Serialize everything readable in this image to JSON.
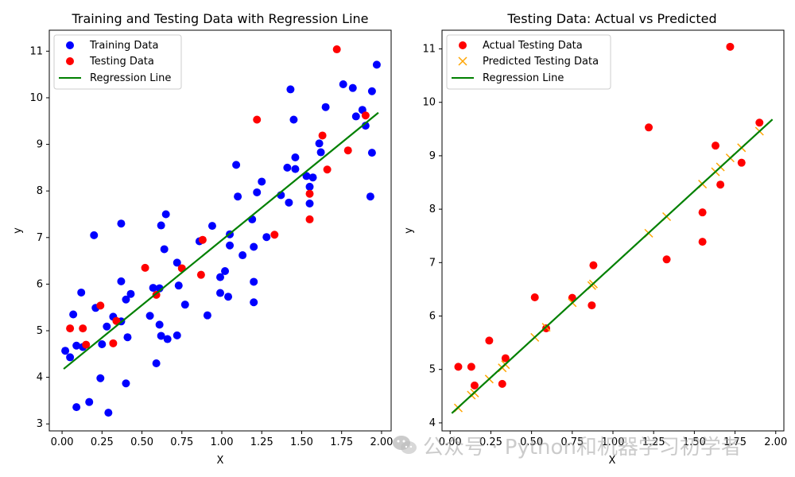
{
  "colors": {
    "training": "#0000ff",
    "testing": "#ff0000",
    "predicted": "#ffa500",
    "regression": "#008000",
    "axis": "#000000"
  },
  "watermark": {
    "icon": "wechat-icon",
    "text": "公众号 · Python和机器学习初学者"
  },
  "chart_data": [
    {
      "type": "scatter",
      "title": "Training and Testing Data with Regression Line",
      "xlabel": "X",
      "ylabel": "y",
      "xlim": [
        -0.08,
        2.06
      ],
      "ylim": [
        2.85,
        11.45
      ],
      "xticks": [
        0.0,
        0.25,
        0.5,
        0.75,
        1.0,
        1.25,
        1.5,
        1.75,
        2.0
      ],
      "xtick_labels": [
        "0.00",
        "0.25",
        "0.50",
        "0.75",
        "1.00",
        "1.25",
        "1.50",
        "1.75",
        "2.00"
      ],
      "yticks": [
        3,
        4,
        5,
        6,
        7,
        8,
        9,
        10,
        11
      ],
      "ytick_labels": [
        "3",
        "4",
        "5",
        "6",
        "7",
        "8",
        "9",
        "10",
        "11"
      ],
      "legend_loc": "upper-left",
      "legend": [
        "Training Data",
        "Testing Data",
        "Regression Line"
      ],
      "series": [
        {
          "name": "Training Data",
          "kind": "points",
          "color": "#0000ff",
          "points": [
            [
              0.02,
              4.57
            ],
            [
              0.05,
              4.43
            ],
            [
              0.07,
              5.35
            ],
            [
              0.09,
              4.68
            ],
            [
              0.09,
              3.36
            ],
            [
              0.12,
              5.82
            ],
            [
              0.13,
              4.65
            ],
            [
              0.17,
              3.47
            ],
            [
              0.2,
              7.05
            ],
            [
              0.21,
              5.49
            ],
            [
              0.24,
              3.98
            ],
            [
              0.25,
              4.71
            ],
            [
              0.28,
              5.09
            ],
            [
              0.29,
              3.24
            ],
            [
              0.32,
              5.3
            ],
            [
              0.37,
              5.2
            ],
            [
              0.37,
              7.3
            ],
            [
              0.37,
              6.06
            ],
            [
              0.4,
              5.67
            ],
            [
              0.4,
              3.87
            ],
            [
              0.41,
              4.86
            ],
            [
              0.43,
              5.79
            ],
            [
              0.55,
              5.32
            ],
            [
              0.57,
              5.92
            ],
            [
              0.59,
              4.3
            ],
            [
              0.61,
              5.91
            ],
            [
              0.61,
              5.13
            ],
            [
              0.62,
              7.26
            ],
            [
              0.62,
              4.89
            ],
            [
              0.64,
              6.75
            ],
            [
              0.65,
              7.5
            ],
            [
              0.66,
              4.82
            ],
            [
              0.72,
              6.46
            ],
            [
              0.72,
              4.9
            ],
            [
              0.73,
              5.97
            ],
            [
              0.77,
              5.56
            ],
            [
              0.86,
              6.92
            ],
            [
              0.91,
              5.33
            ],
            [
              0.94,
              7.25
            ],
            [
              0.99,
              5.81
            ],
            [
              0.99,
              6.15
            ],
            [
              1.02,
              6.28
            ],
            [
              1.04,
              5.73
            ],
            [
              1.05,
              7.07
            ],
            [
              1.05,
              6.83
            ],
            [
              1.09,
              8.56
            ],
            [
              1.1,
              7.88
            ],
            [
              1.13,
              6.62
            ],
            [
              1.19,
              7.39
            ],
            [
              1.2,
              6.05
            ],
            [
              1.2,
              5.61
            ],
            [
              1.2,
              6.8
            ],
            [
              1.22,
              7.97
            ],
            [
              1.25,
              8.2
            ],
            [
              1.28,
              7.01
            ],
            [
              1.37,
              7.91
            ],
            [
              1.41,
              8.5
            ],
            [
              1.42,
              7.75
            ],
            [
              1.43,
              10.18
            ],
            [
              1.45,
              9.53
            ],
            [
              1.46,
              8.72
            ],
            [
              1.46,
              8.47
            ],
            [
              1.53,
              8.32
            ],
            [
              1.55,
              7.73
            ],
            [
              1.55,
              8.09
            ],
            [
              1.57,
              8.29
            ],
            [
              1.61,
              9.02
            ],
            [
              1.62,
              8.83
            ],
            [
              1.65,
              9.8
            ],
            [
              1.76,
              10.29
            ],
            [
              1.82,
              10.21
            ],
            [
              1.84,
              9.6
            ],
            [
              1.88,
              9.74
            ],
            [
              1.9,
              9.4
            ],
            [
              1.93,
              7.88
            ],
            [
              1.94,
              10.14
            ],
            [
              1.94,
              8.82
            ],
            [
              1.97,
              10.71
            ]
          ]
        },
        {
          "name": "Testing Data",
          "kind": "points",
          "color": "#ff0000",
          "points": [
            [
              0.05,
              5.05
            ],
            [
              0.13,
              5.05
            ],
            [
              0.15,
              4.7
            ],
            [
              0.24,
              5.54
            ],
            [
              0.32,
              4.73
            ],
            [
              0.34,
              5.21
            ],
            [
              0.52,
              6.35
            ],
            [
              0.59,
              5.77
            ],
            [
              0.75,
              6.34
            ],
            [
              0.87,
              6.2
            ],
            [
              0.88,
              6.95
            ],
            [
              1.22,
              9.53
            ],
            [
              1.33,
              7.06
            ],
            [
              1.55,
              7.94
            ],
            [
              1.55,
              7.39
            ],
            [
              1.63,
              9.19
            ],
            [
              1.66,
              8.46
            ],
            [
              1.72,
              11.04
            ],
            [
              1.79,
              8.87
            ],
            [
              1.9,
              9.62
            ]
          ]
        },
        {
          "name": "Regression Line",
          "kind": "line",
          "color": "#008000",
          "points": [
            [
              0.01,
              4.18
            ],
            [
              1.98,
              9.68
            ]
          ]
        }
      ]
    },
    {
      "type": "scatter",
      "title": "Testing Data: Actual vs Predicted",
      "xlabel": "X",
      "ylabel": "y",
      "xlim": [
        -0.05,
        2.05
      ],
      "ylim": [
        3.85,
        11.35
      ],
      "xticks": [
        0.0,
        0.25,
        0.5,
        0.75,
        1.0,
        1.25,
        1.5,
        1.75,
        2.0
      ],
      "xtick_labels": [
        "0.00",
        "0.25",
        "0.50",
        "0.75",
        "1.00",
        "1.25",
        "1.50",
        "1.75",
        "2.00"
      ],
      "yticks": [
        4,
        5,
        6,
        7,
        8,
        9,
        10,
        11
      ],
      "ytick_labels": [
        "4",
        "5",
        "6",
        "7",
        "8",
        "9",
        "10",
        "11"
      ],
      "legend_loc": "upper-left",
      "legend": [
        "Actual Testing Data",
        "Predicted Testing Data",
        "Regression Line"
      ],
      "series": [
        {
          "name": "Actual Testing Data",
          "kind": "points",
          "color": "#ff0000",
          "points": [
            [
              0.05,
              5.05
            ],
            [
              0.13,
              5.05
            ],
            [
              0.15,
              4.7
            ],
            [
              0.24,
              5.54
            ],
            [
              0.32,
              4.73
            ],
            [
              0.34,
              5.21
            ],
            [
              0.52,
              6.35
            ],
            [
              0.59,
              5.77
            ],
            [
              0.75,
              6.34
            ],
            [
              0.87,
              6.2
            ],
            [
              0.88,
              6.95
            ],
            [
              1.22,
              9.53
            ],
            [
              1.33,
              7.06
            ],
            [
              1.55,
              7.94
            ],
            [
              1.55,
              7.39
            ],
            [
              1.63,
              9.19
            ],
            [
              1.66,
              8.46
            ],
            [
              1.72,
              11.04
            ],
            [
              1.79,
              8.87
            ],
            [
              1.9,
              9.62
            ]
          ]
        },
        {
          "name": "Predicted Testing Data",
          "kind": "crosses",
          "color": "#ffa500",
          "points": [
            [
              0.05,
              4.28
            ],
            [
              0.13,
              4.52
            ],
            [
              0.15,
              4.56
            ],
            [
              0.24,
              4.82
            ],
            [
              0.32,
              5.03
            ],
            [
              0.34,
              5.09
            ],
            [
              0.52,
              5.6
            ],
            [
              0.59,
              5.79
            ],
            [
              0.75,
              6.25
            ],
            [
              0.87,
              6.57
            ],
            [
              0.88,
              6.6
            ],
            [
              1.22,
              7.55
            ],
            [
              1.33,
              7.86
            ],
            [
              1.55,
              8.47
            ],
            [
              1.63,
              8.7
            ],
            [
              1.66,
              8.79
            ],
            [
              1.72,
              8.96
            ],
            [
              1.79,
              9.15
            ],
            [
              1.9,
              9.46
            ]
          ]
        },
        {
          "name": "Regression Line",
          "kind": "line",
          "color": "#008000",
          "points": [
            [
              0.01,
              4.18
            ],
            [
              1.98,
              9.68
            ]
          ]
        }
      ]
    }
  ]
}
